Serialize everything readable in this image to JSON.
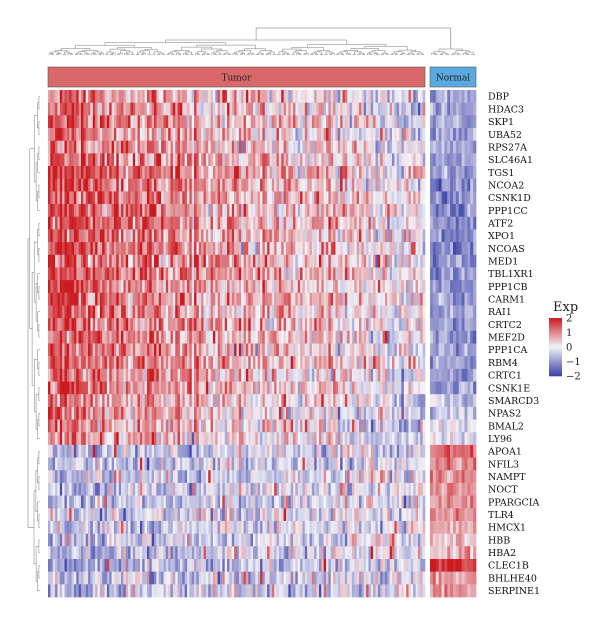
{
  "chart_data": {
    "type": "heatmap",
    "title": "",
    "xlabel": "",
    "ylabel": "",
    "groups": [
      {
        "name": "Tumor",
        "samples": 160,
        "color": "#d9686a"
      },
      {
        "name": "Normal",
        "samples": 16,
        "color": "#5aa9e0"
      }
    ],
    "genes": [
      "DBP",
      "HDAC3",
      "SKP1",
      "UBA52",
      "RPS27A",
      "SLC46A1",
      "TGS1",
      "NCOA2",
      "CSNK1D",
      "PPP1CC",
      "ATF2",
      "XPO1",
      "NCOAS",
      "MED1",
      "TBL1XR1",
      "PPP1CB",
      "CARM1",
      "RAI1",
      "CRTC2",
      "MEF2D",
      "PPP1CA",
      "RBM4",
      "CRTC1",
      "CSNK1E",
      "SMARCD3",
      "NPAS2",
      "BMAL2",
      "LY96",
      "APOA1",
      "NFIL3",
      "NAMPT",
      "NOCT",
      "PPARGCIA",
      "TLR4",
      "HMCX1",
      "HBB",
      "HBA2",
      "CLEC1B",
      "BHLHE40",
      "SERPINE1"
    ],
    "tumor_mean": [
      0.3,
      0.3,
      0.4,
      0.4,
      0.4,
      0.5,
      0.6,
      0.6,
      0.6,
      0.6,
      0.6,
      0.6,
      0.6,
      0.6,
      0.6,
      0.6,
      0.6,
      0.6,
      0.5,
      0.5,
      0.5,
      0.5,
      0.4,
      0.4,
      0.2,
      0.2,
      0.1,
      0.1,
      -0.4,
      -0.4,
      -0.3,
      -0.3,
      -0.4,
      -0.3,
      -0.3,
      -0.3,
      -0.3,
      -0.5,
      -0.4,
      -0.4
    ],
    "normal_mean": [
      -0.8,
      -0.9,
      -0.9,
      -0.9,
      -0.8,
      -1.0,
      -1.0,
      -1.1,
      -1.1,
      -1.1,
      -1.1,
      -1.1,
      -1.2,
      -1.1,
      -1.1,
      -1.1,
      -1.0,
      -1.0,
      -1.0,
      -1.0,
      -0.9,
      -0.9,
      -0.9,
      -0.9,
      -0.4,
      -0.5,
      -0.3,
      -0.3,
      1.2,
      1.0,
      1.0,
      1.0,
      0.9,
      0.8,
      0.6,
      0.5,
      0.5,
      1.8,
      0.9,
      0.9
    ],
    "color_scale": {
      "min": -2,
      "max": 2,
      "low": "#3a3fa6",
      "mid": "#f2f2f8",
      "high": "#cc1a1f"
    },
    "legend": {
      "title": "Exp",
      "ticks": [
        2,
        1,
        0,
        -1,
        -2
      ],
      "placement": "right"
    }
  }
}
